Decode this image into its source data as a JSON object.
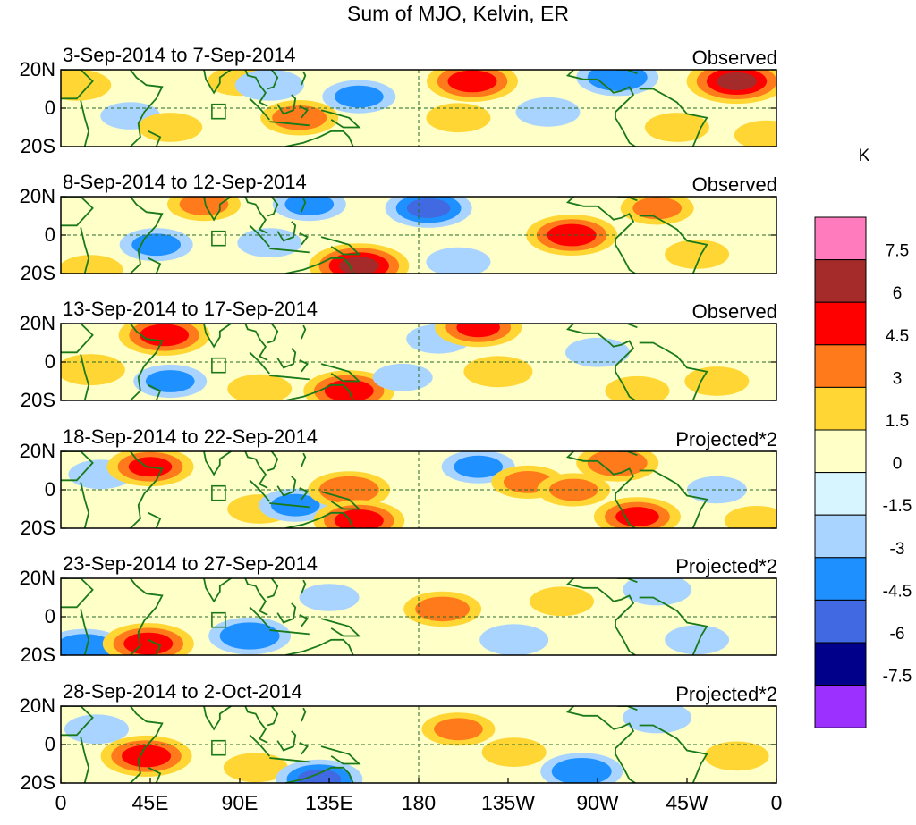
{
  "title": "Sum of MJO, Kelvin, ER",
  "units_label": "K",
  "lat_labels": [
    "20N",
    "0",
    "20S"
  ],
  "lon_labels": [
    "0",
    "45E",
    "90E",
    "135E",
    "180",
    "135W",
    "90W",
    "45W",
    "0"
  ],
  "colorbar": {
    "tick_labels": [
      "7.5",
      "6",
      "4.5",
      "3",
      "1.5",
      "0",
      "-1.5",
      "-3",
      "-4.5",
      "-6",
      "-7.5"
    ],
    "colors_top_to_bottom": [
      "#ff7bbd",
      "#a52a2a",
      "#ff0000",
      "#ff7a1a",
      "#ffd633",
      "#ffffc8",
      "#d6f5ff",
      "#a8d4ff",
      "#1e90ff",
      "#4169e1",
      "#00008b",
      "#9b30ff"
    ]
  },
  "chart_data": {
    "type": "heatmap",
    "title": "Sum of MJO, Kelvin, ER",
    "units": "K",
    "lon_range": [
      0,
      360
    ],
    "lat_range": [
      -20,
      20
    ],
    "levels": [
      -7.5,
      -6,
      -4.5,
      -3,
      -1.5,
      0,
      1.5,
      3,
      4.5,
      6,
      7.5
    ],
    "panels": [
      {
        "period": "3-Sep-2014 to 7-Sep-2014",
        "tag": "Observed",
        "blobs": [
          [
            8,
            12,
            2.5
          ],
          [
            35,
            -4,
            -1.5
          ],
          [
            55,
            -10,
            2
          ],
          [
            90,
            14,
            2
          ],
          [
            105,
            12,
            -2.5
          ],
          [
            120,
            -5,
            3.5
          ],
          [
            150,
            6,
            -3
          ],
          [
            200,
            -5,
            2
          ],
          [
            207,
            14,
            5
          ],
          [
            245,
            -2,
            -2
          ],
          [
            280,
            16,
            -4
          ],
          [
            310,
            -10,
            2
          ],
          [
            340,
            14,
            6
          ],
          [
            355,
            -14,
            2
          ]
        ]
      },
      {
        "period": "8-Sep-2014 to 12-Sep-2014",
        "tag": "Observed",
        "blobs": [
          [
            15,
            -18,
            2
          ],
          [
            48,
            -5,
            -3
          ],
          [
            72,
            16,
            3
          ],
          [
            105,
            -4,
            -2
          ],
          [
            125,
            16,
            -3
          ],
          [
            150,
            -16,
            6
          ],
          [
            185,
            14,
            -4.5
          ],
          [
            200,
            -14,
            -2
          ],
          [
            257,
            0,
            5
          ],
          [
            300,
            14,
            3
          ],
          [
            320,
            -10,
            2
          ]
        ]
      },
      {
        "period": "13-Sep-2014 to 17-Sep-2014",
        "tag": "Observed",
        "blobs": [
          [
            15,
            -4,
            2.5
          ],
          [
            52,
            14,
            5
          ],
          [
            55,
            -10,
            -3
          ],
          [
            100,
            -14,
            2
          ],
          [
            145,
            -15,
            5
          ],
          [
            172,
            -8,
            -1.5
          ],
          [
            190,
            12,
            -2
          ],
          [
            210,
            18,
            4.5
          ],
          [
            220,
            -5,
            2.5
          ],
          [
            270,
            5,
            -2
          ],
          [
            290,
            -15,
            2
          ],
          [
            330,
            -10,
            2
          ]
        ]
      },
      {
        "period": "18-Sep-2014 to 22-Sep-2014",
        "tag": "Projected*2",
        "blobs": [
          [
            20,
            8,
            -2
          ],
          [
            45,
            12,
            4.5
          ],
          [
            100,
            -10,
            2
          ],
          [
            118,
            -8,
            -3
          ],
          [
            145,
            0,
            4
          ],
          [
            150,
            -16,
            5
          ],
          [
            210,
            12,
            -3
          ],
          [
            235,
            4,
            3
          ],
          [
            258,
            0,
            3
          ],
          [
            280,
            14,
            4
          ],
          [
            290,
            -14,
            4.5
          ],
          [
            330,
            0,
            -1.5
          ],
          [
            350,
            -16,
            2
          ]
        ]
      },
      {
        "period": "23-Sep-2014 to 27-Sep-2014",
        "tag": "Projected*2",
        "blobs": [
          [
            12,
            -16,
            -4
          ],
          [
            44,
            -14,
            5
          ],
          [
            95,
            -10,
            -4
          ],
          [
            135,
            10,
            -1.5
          ],
          [
            192,
            4,
            3.5
          ],
          [
            228,
            -12,
            -2.5
          ],
          [
            252,
            8,
            2
          ],
          [
            300,
            14,
            -2.5
          ],
          [
            320,
            -12,
            -2
          ]
        ]
      },
      {
        "period": "28-Sep-2014 to 2-Oct-2014",
        "tag": "Projected*2",
        "blobs": [
          [
            18,
            8,
            -2
          ],
          [
            43,
            -6,
            5
          ],
          [
            98,
            -12,
            2
          ],
          [
            130,
            -18,
            -4.5
          ],
          [
            200,
            8,
            3
          ],
          [
            228,
            -4,
            2
          ],
          [
            262,
            -14,
            -4
          ],
          [
            300,
            14,
            -2.5
          ],
          [
            340,
            -6,
            2
          ]
        ]
      }
    ]
  }
}
